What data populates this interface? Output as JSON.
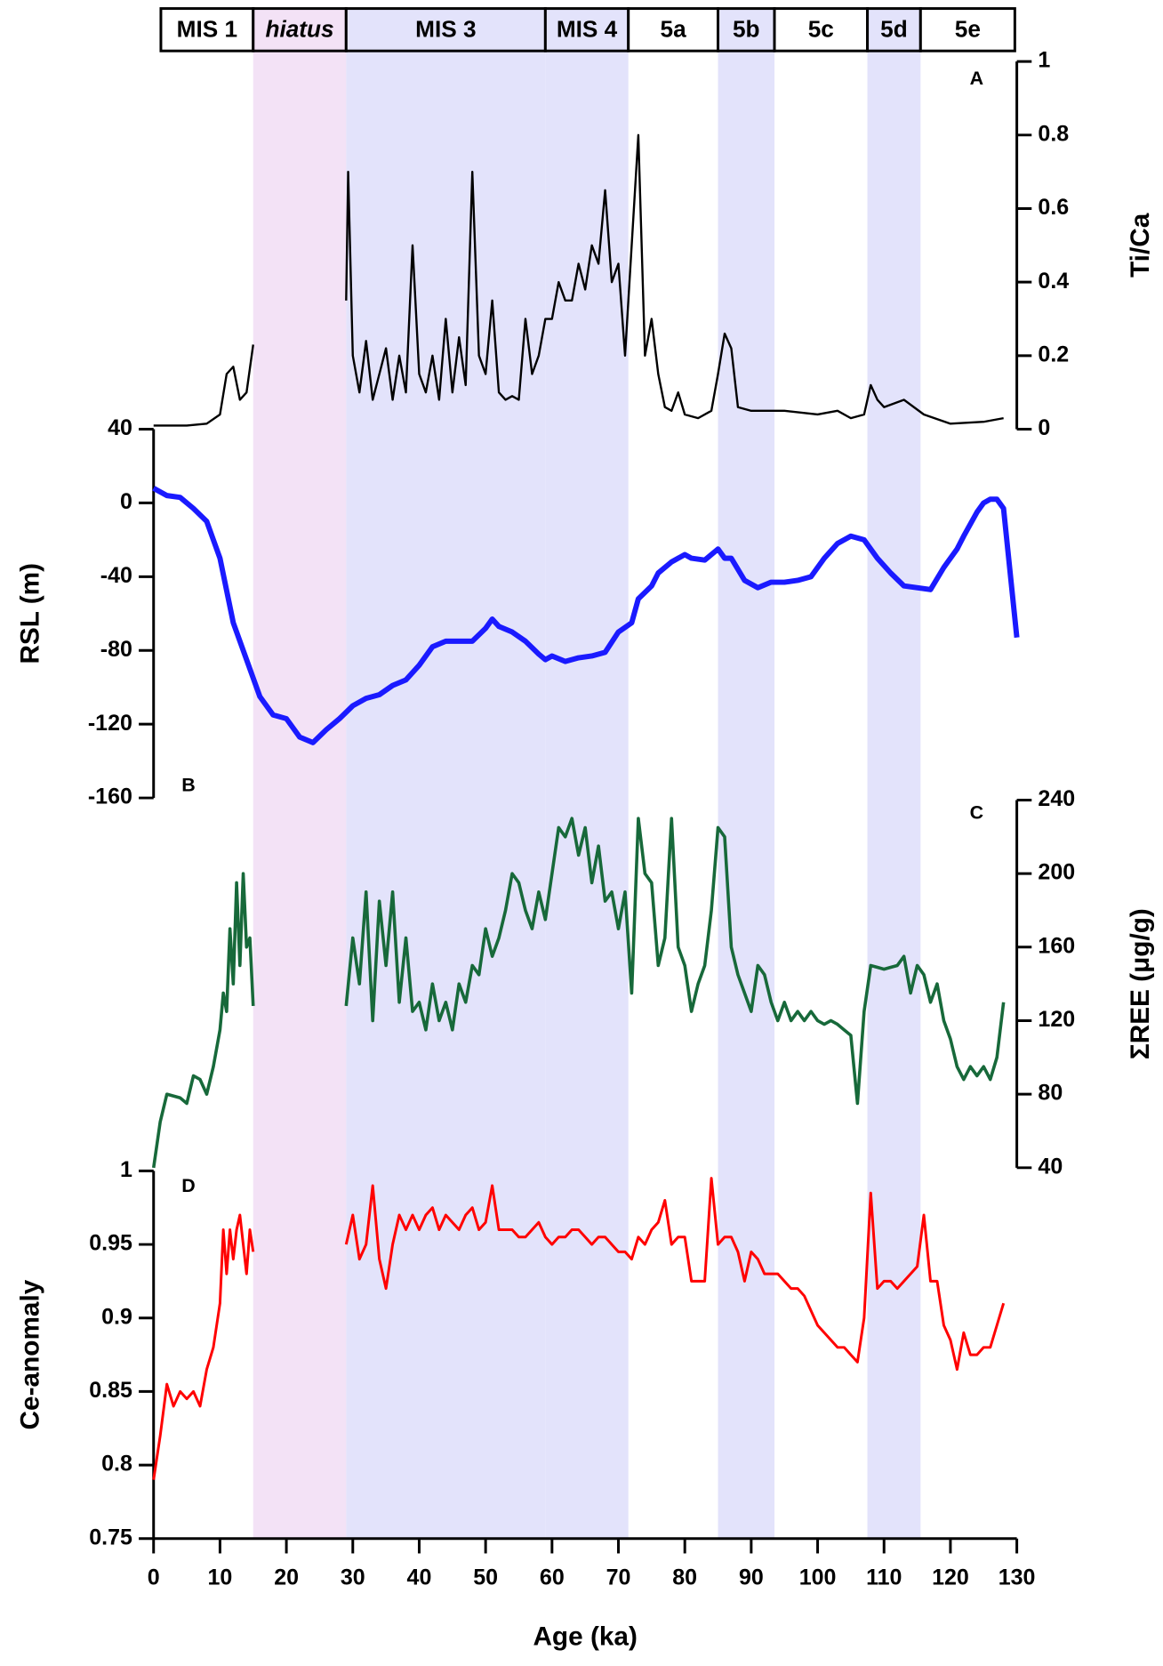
{
  "chart_data": [
    {
      "type": "line",
      "ylabel": "Ti/Ca",
      "panel_label": "A",
      "color": "#000000",
      "xlim": [
        0,
        130
      ],
      "ylim": [
        0,
        1
      ],
      "yticks": [
        0,
        0.2,
        0.4,
        0.6,
        0.8,
        1
      ],
      "stages": [
        {
          "label": "MIS 1",
          "start": 1.1,
          "end": 15,
          "color": "#ffffff"
        },
        {
          "label": "hiatus",
          "start": 15,
          "end": 29,
          "color": "#f3e2f6",
          "italic": true
        },
        {
          "label": "MIS 3",
          "start": 29,
          "end": 59,
          "color": "#e3e3fb"
        },
        {
          "label": "MIS 4",
          "start": 59,
          "end": 71.5,
          "color": "#e3e3fb"
        },
        {
          "label": "5a",
          "start": 71.5,
          "end": 85,
          "color": "#ffffff"
        },
        {
          "label": "5b",
          "start": 85,
          "end": 93.5,
          "color": "#e3e3fb"
        },
        {
          "label": "5c",
          "start": 93.5,
          "end": 107.5,
          "color": "#ffffff"
        },
        {
          "label": "5d",
          "start": 107.5,
          "end": 115.5,
          "color": "#e3e3fb"
        },
        {
          "label": "5e",
          "start": 115.5,
          "end": 129.7,
          "color": "#ffffff"
        }
      ],
      "x": [
        0,
        5,
        8,
        10,
        11,
        12,
        13,
        14,
        15,
        20,
        29,
        29.3,
        30,
        31,
        32,
        33,
        34,
        35,
        36,
        37,
        38,
        39,
        40,
        41,
        42,
        43,
        44,
        45,
        46,
        47,
        48,
        49,
        50,
        51,
        52,
        53,
        54,
        55,
        56,
        57,
        58,
        59,
        60,
        61,
        62,
        63,
        64,
        65,
        66,
        67,
        68,
        69,
        70,
        71,
        72,
        73,
        74,
        75,
        76,
        77,
        78,
        79,
        80,
        82,
        84,
        85,
        86,
        87,
        88,
        90,
        95,
        100,
        103,
        105,
        107,
        108,
        109,
        110,
        113,
        116,
        120,
        125,
        128
      ],
      "values": [
        0.01,
        0.01,
        0.015,
        0.04,
        0.15,
        0.17,
        0.08,
        0.1,
        0.23,
        null,
        0.35,
        0.7,
        0.2,
        0.1,
        0.24,
        0.08,
        0.15,
        0.22,
        0.08,
        0.2,
        0.1,
        0.5,
        0.15,
        0.1,
        0.2,
        0.08,
        0.3,
        0.1,
        0.25,
        0.12,
        0.7,
        0.2,
        0.15,
        0.35,
        0.1,
        0.08,
        0.09,
        0.08,
        0.3,
        0.15,
        0.2,
        0.3,
        0.3,
        0.4,
        0.35,
        0.35,
        0.45,
        0.38,
        0.5,
        0.45,
        0.65,
        0.4,
        0.45,
        0.2,
        0.5,
        0.8,
        0.2,
        0.3,
        0.15,
        0.06,
        0.05,
        0.1,
        0.04,
        0.03,
        0.05,
        0.15,
        0.26,
        0.22,
        0.06,
        0.05,
        0.05,
        0.04,
        0.05,
        0.03,
        0.04,
        0.12,
        0.08,
        0.06,
        0.08,
        0.04,
        0.015,
        0.02,
        0.03
      ]
    },
    {
      "type": "line",
      "ylabel": "RSL (m)",
      "panel_label": "B",
      "color": "#1a1aff",
      "xlim": [
        0,
        130
      ],
      "ylim": [
        -160,
        40
      ],
      "yticks": [
        -160,
        -120,
        -80,
        -40,
        0,
        40
      ],
      "x": [
        0,
        2,
        4,
        6,
        8,
        10,
        12,
        14,
        16,
        18,
        20,
        22,
        24,
        26,
        28,
        30,
        32,
        34,
        36,
        38,
        40,
        42,
        44,
        46,
        48,
        50,
        51,
        52,
        54,
        56,
        58,
        59,
        60,
        62,
        64,
        66,
        68,
        70,
        72,
        73,
        75,
        76,
        78,
        80,
        81,
        83,
        85,
        86,
        87,
        89,
        91,
        93,
        95,
        97,
        99,
        101,
        103,
        105,
        107,
        109,
        111,
        113,
        117,
        119,
        121,
        122,
        124,
        125,
        126,
        127,
        128,
        130
      ],
      "values": [
        8,
        4,
        3,
        -3,
        -10,
        -30,
        -65,
        -85,
        -105,
        -115,
        -117,
        -127,
        -130,
        -123,
        -117,
        -110,
        -106,
        -104,
        -99,
        -96,
        -88,
        -78,
        -75,
        -75,
        -75,
        -68,
        -63,
        -67,
        -70,
        -75,
        -82,
        -85,
        -83,
        -86,
        -84,
        -83,
        -81,
        -70,
        -65,
        -52,
        -45,
        -38,
        -32,
        -28,
        -30,
        -31,
        -25,
        -30,
        -30,
        -42,
        -46,
        -43,
        -43,
        -42,
        -40,
        -30,
        -22,
        -18,
        -20,
        -30,
        -38,
        -45,
        -47,
        -35,
        -25,
        -18,
        -5,
        0,
        2,
        2,
        -3,
        -73
      ]
    },
    {
      "type": "line",
      "ylabel": "ΣREE (μg/g)",
      "panel_label": "C",
      "color": "#17693a",
      "xlim": [
        0,
        130
      ],
      "ylim": [
        40,
        240
      ],
      "yticks": [
        40,
        80,
        120,
        160,
        200,
        240
      ],
      "x": [
        0,
        1,
        2,
        4,
        5,
        6,
        7,
        8,
        9,
        10,
        10.5,
        11,
        11.5,
        12,
        12.5,
        13,
        13.5,
        14,
        14.5,
        15,
        20,
        29,
        30,
        31,
        32,
        33,
        34,
        35,
        36,
        37,
        38,
        39,
        40,
        41,
        42,
        43,
        44,
        45,
        46,
        47,
        48,
        49,
        50,
        51,
        52,
        53,
        54,
        55,
        56,
        57,
        58,
        59,
        60,
        61,
        62,
        63,
        64,
        65,
        66,
        67,
        68,
        69,
        70,
        71,
        72,
        73,
        74,
        75,
        76,
        77,
        78,
        79,
        80,
        81,
        82,
        83,
        84,
        85,
        86,
        87,
        88,
        89,
        90,
        91,
        92,
        93,
        94,
        95,
        96,
        97,
        98,
        99,
        100,
        101,
        102,
        103,
        104,
        105,
        106,
        107,
        108,
        109,
        110,
        111,
        112,
        113,
        114,
        115,
        116,
        117,
        118,
        119,
        120,
        121,
        122,
        123,
        124,
        125,
        126,
        127,
        128
      ],
      "values": [
        40,
        65,
        80,
        78,
        75,
        90,
        88,
        80,
        95,
        115,
        135,
        125,
        170,
        140,
        195,
        150,
        200,
        160,
        165,
        128,
        null,
        128,
        165,
        140,
        190,
        120,
        185,
        150,
        190,
        130,
        165,
        125,
        130,
        115,
        140,
        120,
        130,
        115,
        140,
        130,
        150,
        145,
        170,
        155,
        165,
        180,
        200,
        195,
        180,
        170,
        190,
        175,
        200,
        225,
        220,
        230,
        210,
        225,
        195,
        215,
        185,
        190,
        170,
        190,
        135,
        230,
        200,
        195,
        150,
        165,
        230,
        160,
        150,
        125,
        140,
        150,
        180,
        225,
        220,
        160,
        145,
        135,
        125,
        150,
        145,
        130,
        120,
        130,
        120,
        125,
        120,
        125,
        120,
        118,
        120,
        118,
        115,
        112,
        75,
        125,
        150,
        149,
        148,
        149,
        150,
        155,
        135,
        150,
        145,
        130,
        140,
        120,
        110,
        95,
        88,
        95,
        90,
        95,
        88,
        100,
        130
      ]
    },
    {
      "type": "line",
      "ylabel": "Ce-anomaly",
      "panel_label": "D",
      "color": "#ff0000",
      "xlabel": "Age (ka)",
      "xlim": [
        0,
        130
      ],
      "xticks": [
        0,
        10,
        20,
        30,
        40,
        50,
        60,
        70,
        80,
        90,
        100,
        110,
        120,
        130
      ],
      "ylim": [
        0.75,
        1
      ],
      "yticks": [
        0.75,
        0.8,
        0.85,
        0.9,
        0.95,
        1
      ],
      "x": [
        0,
        1,
        2,
        3,
        4,
        5,
        6,
        7,
        8,
        9,
        10,
        10.5,
        11,
        11.5,
        12,
        12.5,
        13,
        14,
        14.5,
        15,
        20,
        29,
        30,
        31,
        32,
        33,
        34,
        35,
        36,
        37,
        38,
        39,
        40,
        41,
        42,
        43,
        44,
        45,
        46,
        47,
        48,
        49,
        50,
        51,
        52,
        53,
        54,
        55,
        56,
        57,
        58,
        59,
        60,
        61,
        62,
        63,
        64,
        65,
        66,
        67,
        68,
        69,
        70,
        71,
        72,
        73,
        74,
        75,
        76,
        77,
        78,
        79,
        80,
        81,
        82,
        83,
        84,
        85,
        86,
        87,
        88,
        89,
        90,
        91,
        92,
        93,
        94,
        95,
        96,
        97,
        98,
        99,
        100,
        101,
        102,
        103,
        104,
        105,
        106,
        107,
        108,
        109,
        110,
        111,
        112,
        113,
        114,
        115,
        116,
        117,
        118,
        119,
        120,
        121,
        122,
        123,
        124,
        125,
        126,
        127,
        128
      ],
      "values": [
        0.79,
        0.82,
        0.855,
        0.84,
        0.85,
        0.845,
        0.85,
        0.84,
        0.865,
        0.88,
        0.91,
        0.96,
        0.93,
        0.96,
        0.94,
        0.96,
        0.97,
        0.93,
        0.96,
        0.945,
        null,
        0.95,
        0.97,
        0.94,
        0.95,
        0.99,
        0.94,
        0.92,
        0.95,
        0.97,
        0.96,
        0.97,
        0.96,
        0.97,
        0.975,
        0.96,
        0.97,
        0.965,
        0.96,
        0.97,
        0.975,
        0.96,
        0.965,
        0.99,
        0.96,
        0.96,
        0.96,
        0.955,
        0.955,
        0.96,
        0.965,
        0.955,
        0.95,
        0.955,
        0.955,
        0.96,
        0.96,
        0.955,
        0.95,
        0.955,
        0.955,
        0.95,
        0.945,
        0.945,
        0.94,
        0.955,
        0.95,
        0.96,
        0.965,
        0.98,
        0.95,
        0.955,
        0.955,
        0.925,
        0.925,
        0.925,
        0.995,
        0.95,
        0.955,
        0.955,
        0.945,
        0.925,
        0.945,
        0.94,
        0.93,
        0.93,
        0.93,
        0.925,
        0.92,
        0.92,
        0.915,
        0.905,
        0.895,
        0.89,
        0.885,
        0.88,
        0.88,
        0.875,
        0.87,
        0.9,
        0.985,
        0.92,
        0.925,
        0.925,
        0.92,
        0.925,
        0.93,
        0.935,
        0.97,
        0.925,
        0.925,
        0.895,
        0.885,
        0.865,
        0.89,
        0.875,
        0.875,
        0.88,
        0.88,
        0.895,
        0.91
      ]
    }
  ]
}
